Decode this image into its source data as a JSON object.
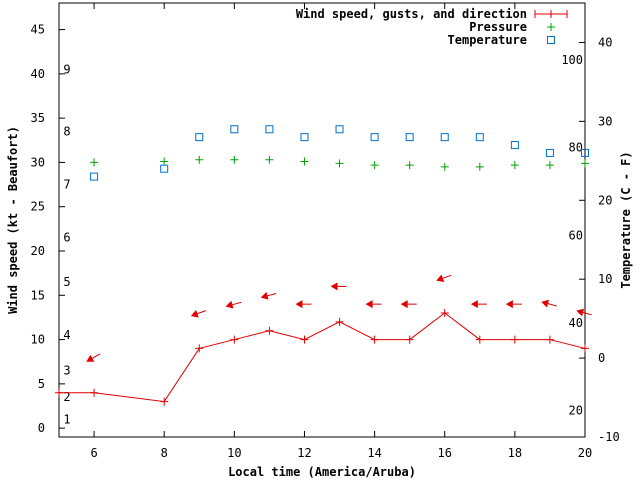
{
  "chart_data": {
    "type": "line",
    "title": "",
    "xlabel": "Local time (America/Aruba)",
    "ylabel_left": "Wind speed (kt - Beaufort)",
    "ylabel_right": "Temperature (C - F)",
    "xlim": [
      5,
      20
    ],
    "ylim_left": [
      -1,
      48
    ],
    "ylim_right": [
      -10,
      45
    ],
    "x_ticks": [
      "6",
      "8",
      "10",
      "12",
      "14",
      "16",
      "18",
      "20"
    ],
    "y_left_ticks": [
      "0",
      "5",
      "10",
      "15",
      "20",
      "25",
      "30",
      "35",
      "40",
      "45"
    ],
    "y_right_ticks": [
      "-10",
      "0",
      "10",
      "20",
      "30",
      "40"
    ],
    "beaufort_labels": [
      "1",
      "2",
      "3",
      "4",
      "5",
      "6",
      "7",
      "8",
      "9"
    ],
    "fahrenheit_labels": [
      "20",
      "40",
      "60",
      "80",
      "100"
    ],
    "legend": {
      "wind": "Wind speed, gusts, and direction",
      "pressure": "Pressure",
      "temperature": "Temperature"
    },
    "colors": {
      "wind": "#e00000",
      "pressure": "#00a000",
      "temperature": "#0070d0"
    },
    "series": [
      {
        "name": "Wind speed, gusts, and direction",
        "axis": "left",
        "x": [
          5,
          6,
          8,
          9,
          10,
          11,
          12,
          13,
          14,
          15,
          16,
          17,
          18,
          19,
          20
        ],
        "values": [
          4,
          4,
          3,
          9,
          10,
          11,
          10,
          12,
          10,
          10,
          13,
          10,
          10,
          10,
          9
        ]
      },
      {
        "name": "Pressure",
        "axis": "left",
        "x": [
          6,
          8,
          9,
          10,
          11,
          12,
          13,
          14,
          15,
          16,
          17,
          18,
          19,
          20
        ],
        "values": [
          30,
          30.1,
          30.3,
          30.3,
          30.3,
          30.1,
          29.9,
          29.7,
          29.7,
          29.5,
          29.5,
          29.7,
          29.7,
          29.9
        ]
      },
      {
        "name": "Temperature",
        "axis": "right",
        "x": [
          6,
          8,
          9,
          10,
          11,
          12,
          13,
          14,
          15,
          16,
          17,
          18,
          19,
          20
        ],
        "values": [
          23,
          24,
          28,
          29,
          29,
          28,
          29,
          28,
          28,
          28,
          28,
          27,
          26,
          26
        ]
      }
    ],
    "wind_direction_arrows": [
      {
        "x": 6,
        "y": 8,
        "angle": 150
      },
      {
        "x": 9,
        "y": 13,
        "angle": 160
      },
      {
        "x": 10,
        "y": 14,
        "angle": 165
      },
      {
        "x": 11,
        "y": 15,
        "angle": 165
      },
      {
        "x": 12,
        "y": 14,
        "angle": 180
      },
      {
        "x": 13,
        "y": 16,
        "angle": 180
      },
      {
        "x": 14,
        "y": 14,
        "angle": 180
      },
      {
        "x": 15,
        "y": 14,
        "angle": 180
      },
      {
        "x": 16,
        "y": 17,
        "angle": 160
      },
      {
        "x": 17,
        "y": 14,
        "angle": 180
      },
      {
        "x": 18,
        "y": 14,
        "angle": 180
      },
      {
        "x": 19,
        "y": 14,
        "angle": 195
      },
      {
        "x": 20,
        "y": 13,
        "angle": 195
      }
    ]
  }
}
